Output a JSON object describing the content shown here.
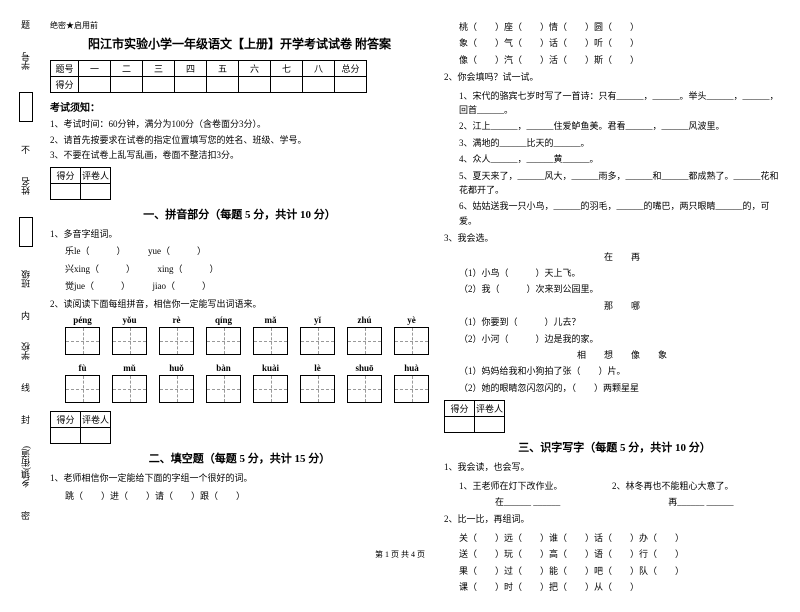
{
  "sidebar": {
    "labels": [
      "学号",
      "姓名",
      "班级",
      "学校",
      "乡镇(街道)"
    ],
    "marks": [
      "题",
      "不",
      "内",
      "线",
      "封",
      "密"
    ]
  },
  "header_mark": "绝密★启用前",
  "title": "阳江市实验小学一年级语文【上册】开学考试试卷 附答案",
  "score_table": {
    "row1": [
      "题号",
      "一",
      "二",
      "三",
      "四",
      "五",
      "六",
      "七",
      "八",
      "总分"
    ],
    "row2_label": "得分"
  },
  "notice": {
    "title": "考试须知：",
    "items": [
      "1、考试时间：60分钟，满分为100分（含卷面分3分）。",
      "2、请首先按要求在试卷的指定位置填写您的姓名、班级、学号。",
      "3、不要在试卷上乱写乱画，卷面不整洁扣3分。"
    ]
  },
  "small_table_headers": [
    "得分",
    "评卷人"
  ],
  "section1": {
    "title": "一、拼音部分（每题 5 分，共计 10 分）",
    "q1": "1、多音字组词。",
    "pairs": [
      {
        "a": "乐le（　　　）",
        "b": "yue（　　　）"
      },
      {
        "a": "兴xing（　　　）",
        "b": "xing（　　　）"
      },
      {
        "a": "觉jue（　　　）",
        "b": "jiao（　　　）"
      }
    ],
    "q2": "2、读阅读下面每组拼音，相信你一定能写出词语来。",
    "pinyin_row1": [
      "péng",
      "yǒu",
      "rè",
      "qíng",
      "mǎ",
      "yǐ",
      "zhú",
      "yè"
    ],
    "pinyin_row2": [
      "fù",
      "mǔ",
      "huǒ",
      "bàn",
      "kuài",
      "lè",
      "shuō",
      "huà"
    ]
  },
  "section2": {
    "title": "二、填空题（每题 5 分，共计 15 分）",
    "q1": "1、老师相信你一定能给下面的字组一个很好的词。",
    "q1_chars": "跳（　　）进（　　）请（　　）跟（　　）",
    "right_chars": [
      "桃（　　）座（　　）情（　　）圆（　　）",
      "象（　　）气（　　）话（　　）听（　　）",
      "像（　　）汽（　　）活（　　）斯（　　）"
    ],
    "q2": "2、你会填吗？试一试。",
    "q2_items": [
      "1、宋代的骆宾七岁时写了一首诗：只有______，______。举头______，______，回首______。",
      "2、江上______，______住爱鲈鱼美。君看______，______风波里。",
      "3、满地的______比天的______。",
      "4、众人______，______黄______。",
      "5、夏天来了，______风大，______雨多，______和______都成熟了。______花和花都开了。",
      "6、姑姑送我一只小鸟，______的羽毛，______的嘴巴，两只眼睛______的，可爱。"
    ],
    "q3": "3、我会选。",
    "q3_label1": "在　　再",
    "q3_items1": [
      "（1）小鸟（　　　）天上飞。",
      "（2）我（　　　）次来到公园里。"
    ],
    "q3_label2": "那　　哪",
    "q3_items2": [
      "（1）你要到（　　　）儿去？",
      "（2）小河（　　　）边是我的家。"
    ],
    "q3_label3": "相　　想　　像　　象",
    "q3_items3": [
      "（1）妈妈给我和小狗拍了张（　　）片。",
      "（2）她的眼睛忽闪忽闪的，（　　）两颗星星"
    ]
  },
  "section3": {
    "title": "三、识字写字（每题 5 分，共计 10 分）",
    "q1": "1、我会读，也会写。",
    "q1_items": [
      "1、王老师在灯下改作业。　　　　　　2、林冬再也不能粗心大意了。",
      "　　　　在______ ______　　　　　　　　　　　　再______ ______"
    ],
    "q2": "2、比一比，再组词。",
    "q2_rows": [
      "关（　　）远（　　）谁（　　）话（　　）办（　　）",
      "送（　　）玩（　　）高（　　）语（　　）行（　　）",
      "果（　　）过（　　）能（　　）吧（　　）队（　　）",
      "课（　　）时（　　）把（　　）从（　　）"
    ]
  },
  "footer": "第 1 页 共 4 页"
}
